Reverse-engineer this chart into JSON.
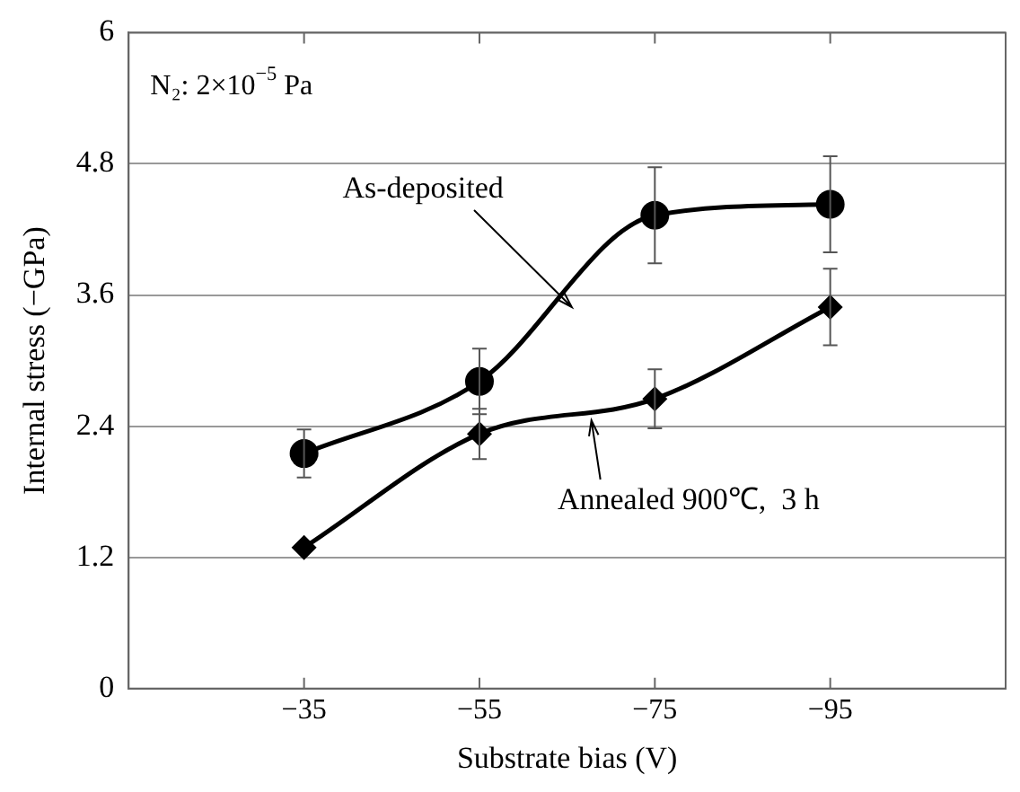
{
  "chart_data": {
    "type": "line",
    "xlabel": "Substrate bias (V)",
    "ylabel": "Internal stress (−GPa)",
    "categories": [
      "−35",
      "−55",
      "−75",
      "−95"
    ],
    "series": [
      {
        "color": "#000000",
        "marker": "circle",
        "values": [
          2.15,
          2.81,
          4.33,
          4.43
        ],
        "errors": [
          0.22,
          0.3,
          0.44,
          0.44
        ]
      },
      {
        "color": "#000000",
        "marker": "diamond",
        "values": [
          1.29,
          2.33,
          2.65,
          3.49
        ],
        "errors": [
          null,
          0.23,
          0.27,
          0.35
        ]
      }
    ],
    "ylim": [
      0,
      6
    ],
    "yticks": [
      0,
      1.2,
      2.4,
      3.6,
      4.8,
      6
    ],
    "grid": "y",
    "legend": false,
    "line_style": "solid",
    "annotations": [
      "N₂: 2×10$^{−5}$ Pa",
      "As-deposited",
      "Annealed 900℃,  3 h"
    ]
  }
}
